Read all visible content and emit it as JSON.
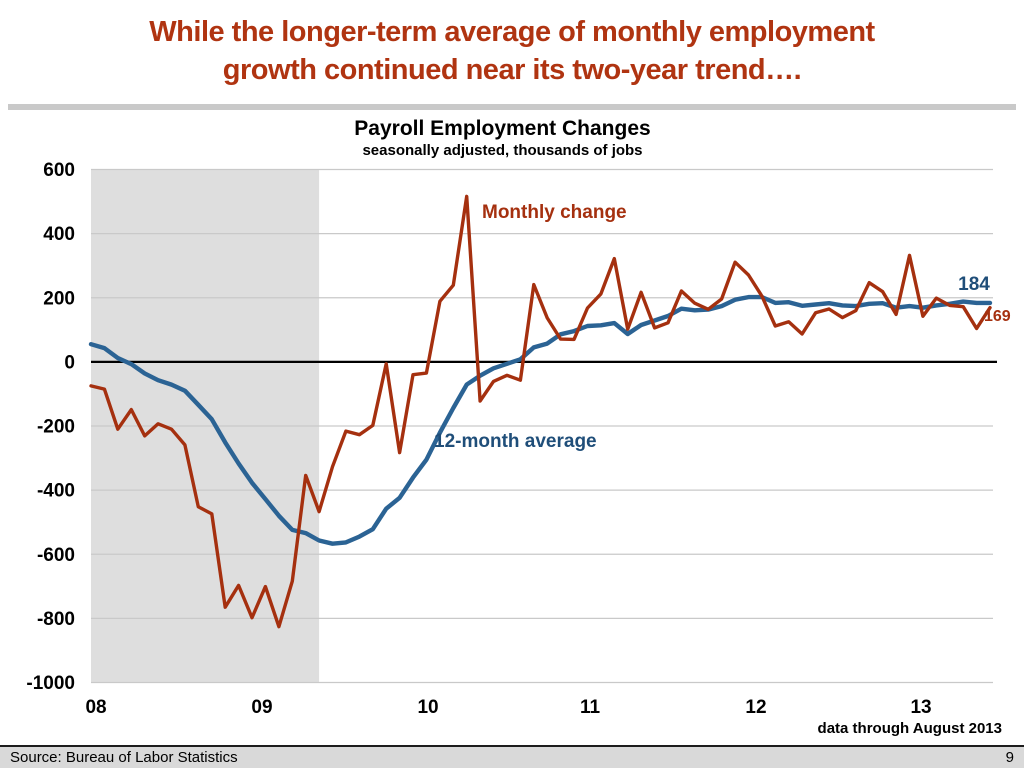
{
  "slide": {
    "title_line1": "While the longer-term average of monthly employment",
    "title_line2": "growth continued near its two-year trend…."
  },
  "chart": {
    "title": "Payroll Employment Changes",
    "subtitle": "seasonally adjusted, thousands of jobs",
    "legend": {
      "monthly": "Monthly change",
      "average": "12-month average"
    },
    "end_labels": {
      "average": "184",
      "monthly": "169"
    },
    "footnote": "data through August 2013"
  },
  "footer": {
    "source": "Source: Bureau of Labor Statistics",
    "page": "9"
  },
  "chart_data": {
    "type": "line",
    "title": "Payroll Employment Changes",
    "subtitle": "seasonally adjusted, thousands of jobs",
    "x_unit": "month",
    "x_start": "2008-01",
    "x_end": "2013-08",
    "x_tick_labels": [
      "08",
      "09",
      "10",
      "11",
      "12",
      "13"
    ],
    "ylim": [
      -1000,
      600
    ],
    "y_ticks": [
      600,
      400,
      200,
      0,
      -200,
      -400,
      -600,
      -800,
      -1000
    ],
    "grid": true,
    "legend_position": "inline",
    "recession_shading": {
      "start": "2008-01",
      "end": "2009-06"
    },
    "series": [
      {
        "name": "12-month average",
        "color": "#2B6394",
        "end_value": 184,
        "values": [
          55,
          43,
          12,
          -7,
          -36,
          -57,
          -71,
          -90,
          -134,
          -179,
          -251,
          -317,
          -377,
          -428,
          -480,
          -524,
          -534,
          -557,
          -567,
          -563,
          -545,
          -522,
          -458,
          -424,
          -361,
          -305,
          -221,
          -144,
          -71,
          -43,
          -20,
          -6,
          8,
          45,
          57,
          86,
          96,
          112,
          114,
          121,
          87,
          115,
          129,
          143,
          166,
          161,
          163,
          174,
          194,
          202,
          202,
          184,
          186,
          175,
          179,
          183,
          176,
          174,
          181,
          183,
          169,
          174,
          169,
          176,
          181,
          188,
          184,
          184
        ]
      },
      {
        "name": "Monthly change",
        "color": "#A5300F",
        "end_value": 169,
        "values": [
          -75,
          -85,
          -210,
          -149,
          -231,
          -193,
          -210,
          -259,
          -452,
          -474,
          -765,
          -697,
          -798,
          -701,
          -826,
          -684,
          -354,
          -467,
          -327,
          -216,
          -227,
          -198,
          -6,
          -283,
          -40,
          -35,
          189,
          239,
          516,
          -122,
          -61,
          -42,
          -57,
          241,
          137,
          71,
          70,
          168,
          212,
          322,
          102,
          217,
          106,
          122,
          221,
          183,
          164,
          196,
          311,
          271,
          205,
          112,
          125,
          87,
          153,
          165,
          138,
          160,
          247,
          219,
          148,
          332,
          142,
          199,
          176,
          172,
          104,
          169
        ]
      }
    ],
    "colors": {
      "band": "#DEDEDE",
      "grid": "#C9C9C9",
      "zero_line": "#000000",
      "title_red": "#B03411",
      "text_blue": "#1F4E79"
    }
  }
}
